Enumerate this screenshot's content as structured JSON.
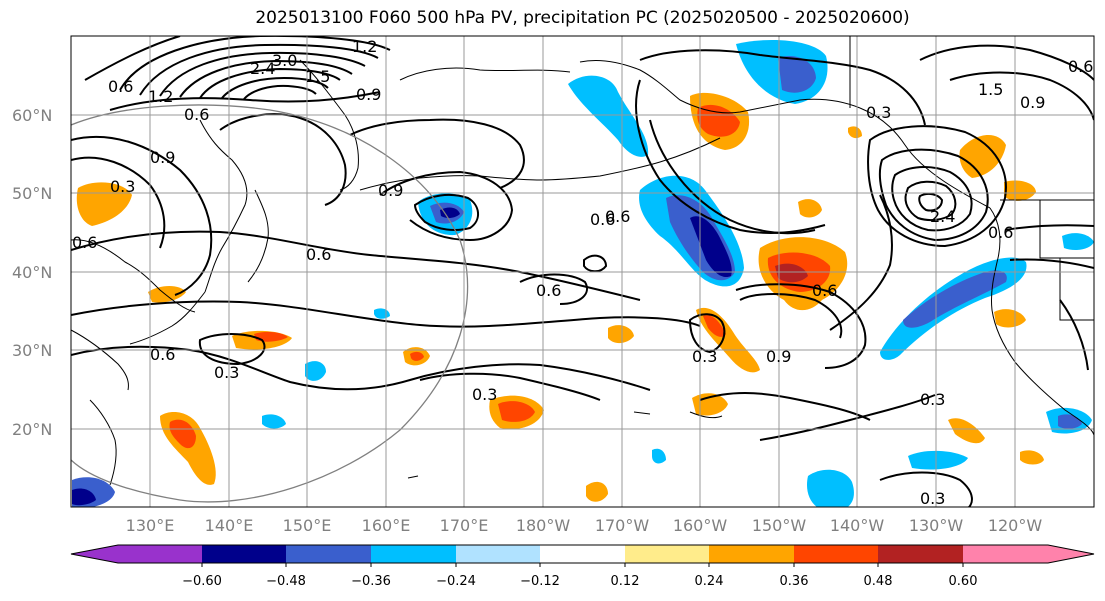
{
  "title": "2025013100 F060 500 hPa PV, precipitation PC (2025020500 - 2025020600)",
  "lat_labels": [
    "60°N",
    "50°N",
    "40°N",
    "30°N",
    "20°N"
  ],
  "lon_labels": [
    "130°E",
    "140°E",
    "150°E",
    "160°E",
    "170°E",
    "180°W",
    "170°W",
    "160°W",
    "150°W",
    "140°W",
    "130°W",
    "120°W"
  ],
  "colorbar": {
    "ticks": [
      "−0.60",
      "−0.48",
      "−0.36",
      "−0.24",
      "−0.12",
      "0.12",
      "0.24",
      "0.36",
      "0.48",
      "0.60"
    ],
    "colors": [
      "#9932cc",
      "#00008b",
      "#3a5fcd",
      "#00bfff",
      "#b0e2ff",
      "#ffffff",
      "#ffec8b",
      "#ffa500",
      "#ff4500",
      "#b22222",
      "#ff82ab"
    ]
  },
  "contour_labels": [
    "0.6",
    "1.2",
    "0.6",
    "0.9",
    "2.4",
    "3.0",
    "1.5",
    "1.2",
    "0.9",
    "0.9",
    "0.6",
    "0.6",
    "0.6",
    "0.6",
    "0.3",
    "0.3",
    "0.3",
    "0.6",
    "0.3",
    "0.9",
    "0.3",
    "0.3",
    "1.5",
    "0.9",
    "0.6",
    "2.4",
    "0.6",
    "0.3",
    "0.6",
    "0.6"
  ]
}
